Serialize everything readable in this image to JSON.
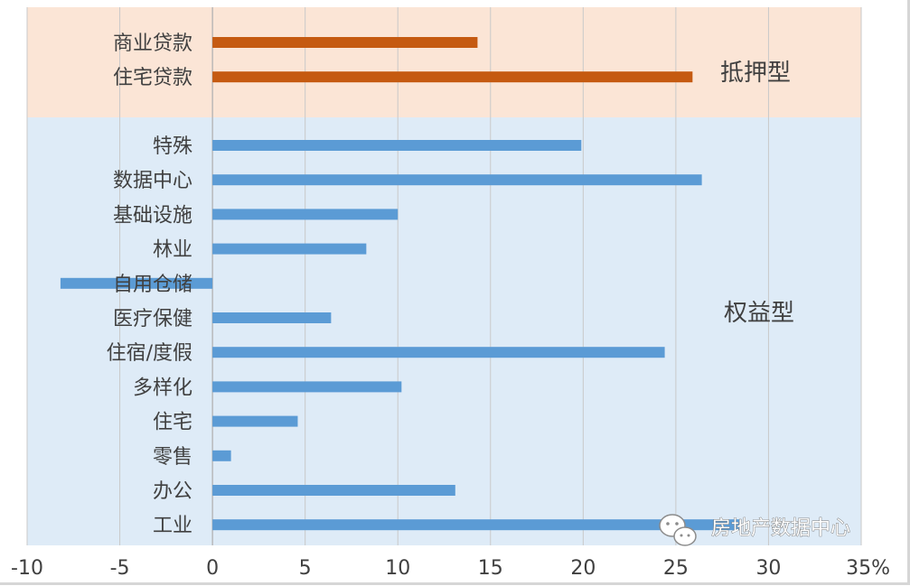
{
  "chart_data": {
    "type": "bar",
    "orientation": "horizontal",
    "xlim": [
      -10,
      35
    ],
    "x_ticks": [
      -10,
      -5,
      0,
      5,
      10,
      15,
      20,
      25,
      30,
      35
    ],
    "x_tick_labels": [
      "-10",
      "-5",
      "0",
      "5",
      "10",
      "15",
      "20",
      "25",
      "30",
      "35%"
    ],
    "grid": true,
    "groups": [
      {
        "label": "抵押型",
        "color": "#c55a11",
        "band_color": "#fbe5d6",
        "categories": [
          "商业贷款",
          "住宅贷款"
        ],
        "values": [
          14.3,
          25.9
        ]
      },
      {
        "label": "权益型",
        "color": "#5b9bd5",
        "band_color": "#deebf7",
        "categories": [
          "特殊",
          "数据中心",
          "基础设施",
          "林业",
          "自用仓储",
          "医疗保健",
          "住宿/度假",
          "多样化",
          "住宅",
          "零售",
          "办公",
          "工业"
        ],
        "values": [
          19.9,
          26.4,
          10.0,
          8.3,
          -8.2,
          6.4,
          24.4,
          10.2,
          4.6,
          1.0,
          13.1,
          28.5
        ]
      }
    ]
  },
  "watermark": {
    "text": "房地产数据中心",
    "icon": "wechat-icon"
  }
}
